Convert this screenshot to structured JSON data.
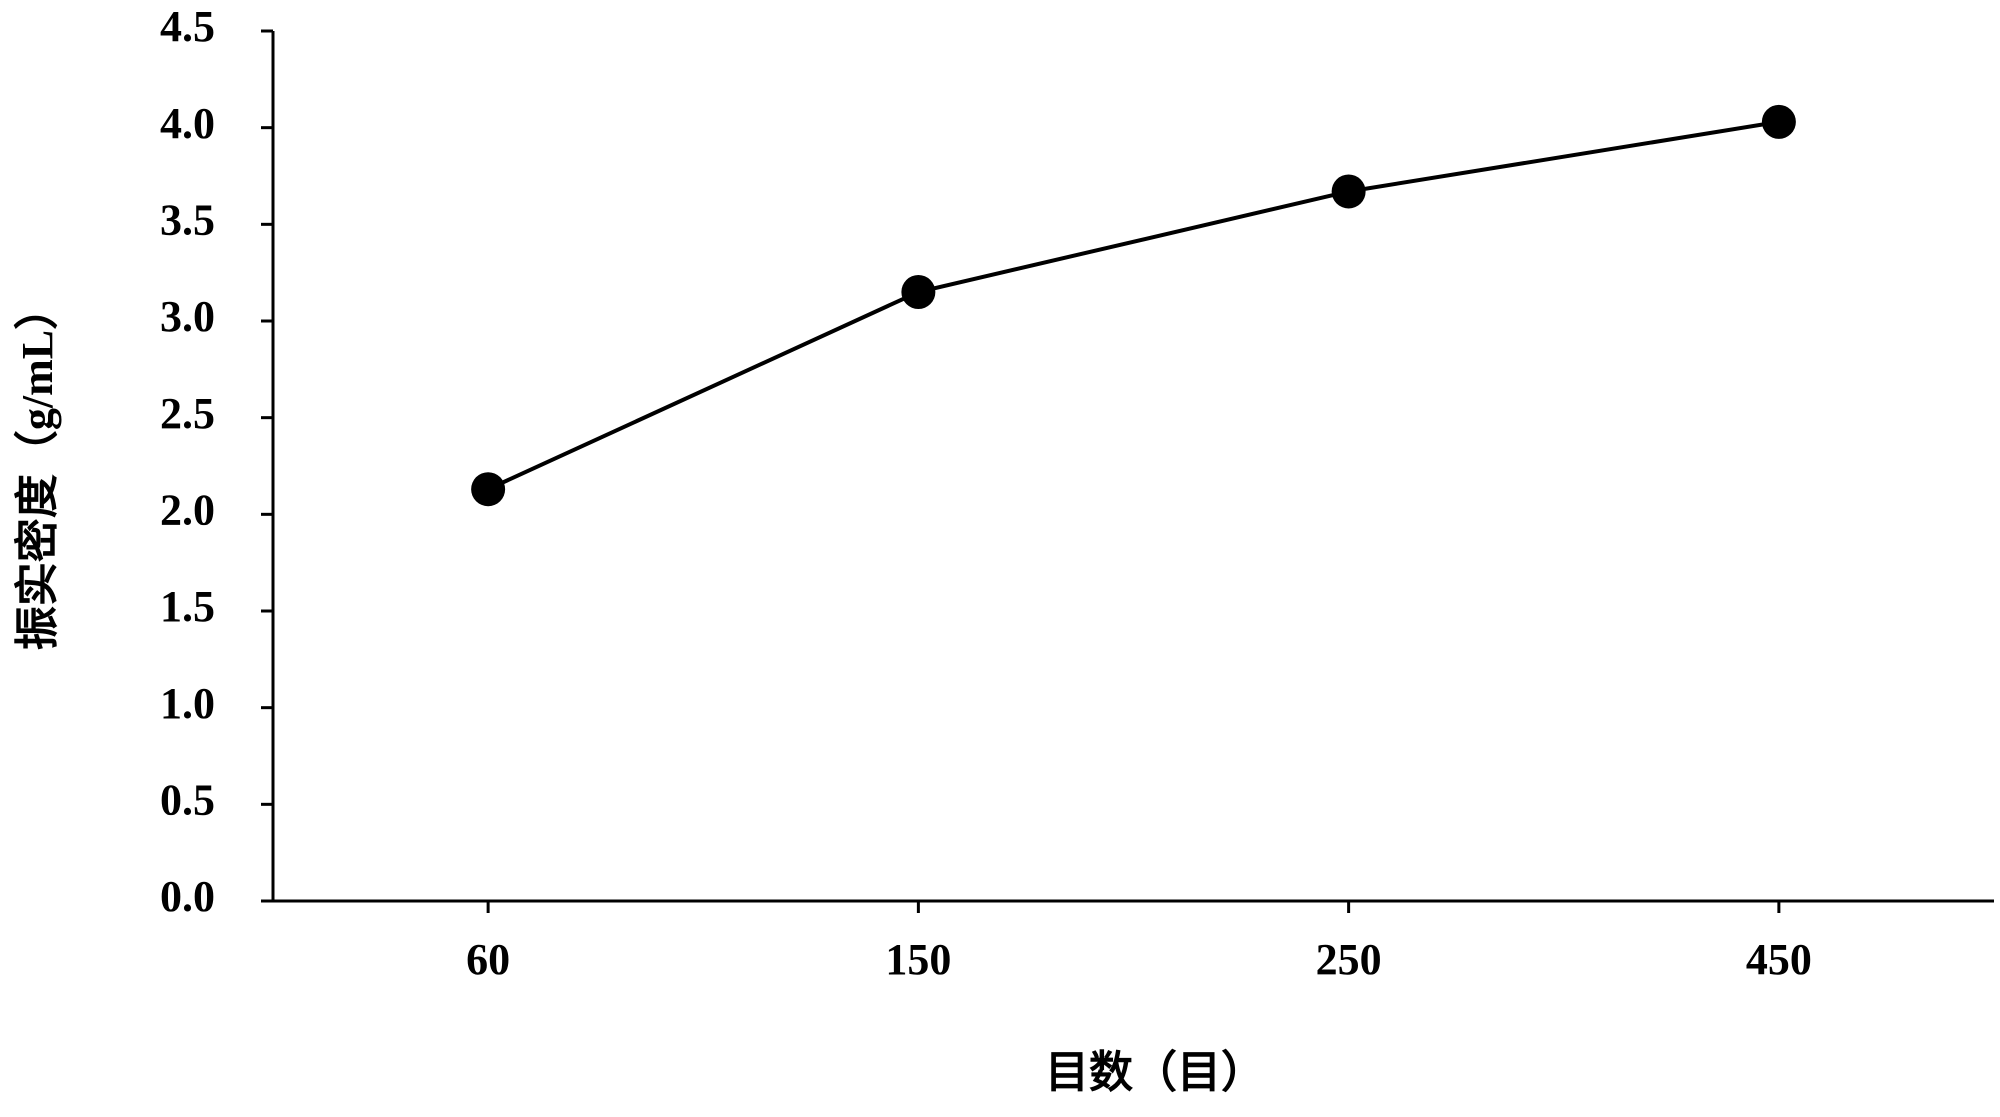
{
  "chart_data": {
    "type": "line",
    "x_label": "目数（目）",
    "y_label": "振实密度（g/mL）",
    "categories": [
      "60",
      "150",
      "250",
      "450"
    ],
    "series": [
      {
        "name": "振实密度",
        "color": "#000000",
        "values": [
          2.13,
          3.15,
          3.67,
          4.03
        ]
      }
    ],
    "ylim": [
      0,
      4.5
    ],
    "yticks": [
      {
        "value": 0,
        "label": "0.0"
      },
      0.5,
      {
        "value": 1,
        "label": "1.0"
      },
      1.5,
      {
        "value": 2,
        "label": "2.0"
      },
      2.5,
      {
        "value": 3,
        "label": "3.0"
      },
      3.5,
      {
        "value": 4,
        "label": "4.0"
      },
      4.5
    ],
    "grid": false,
    "markers": true
  }
}
